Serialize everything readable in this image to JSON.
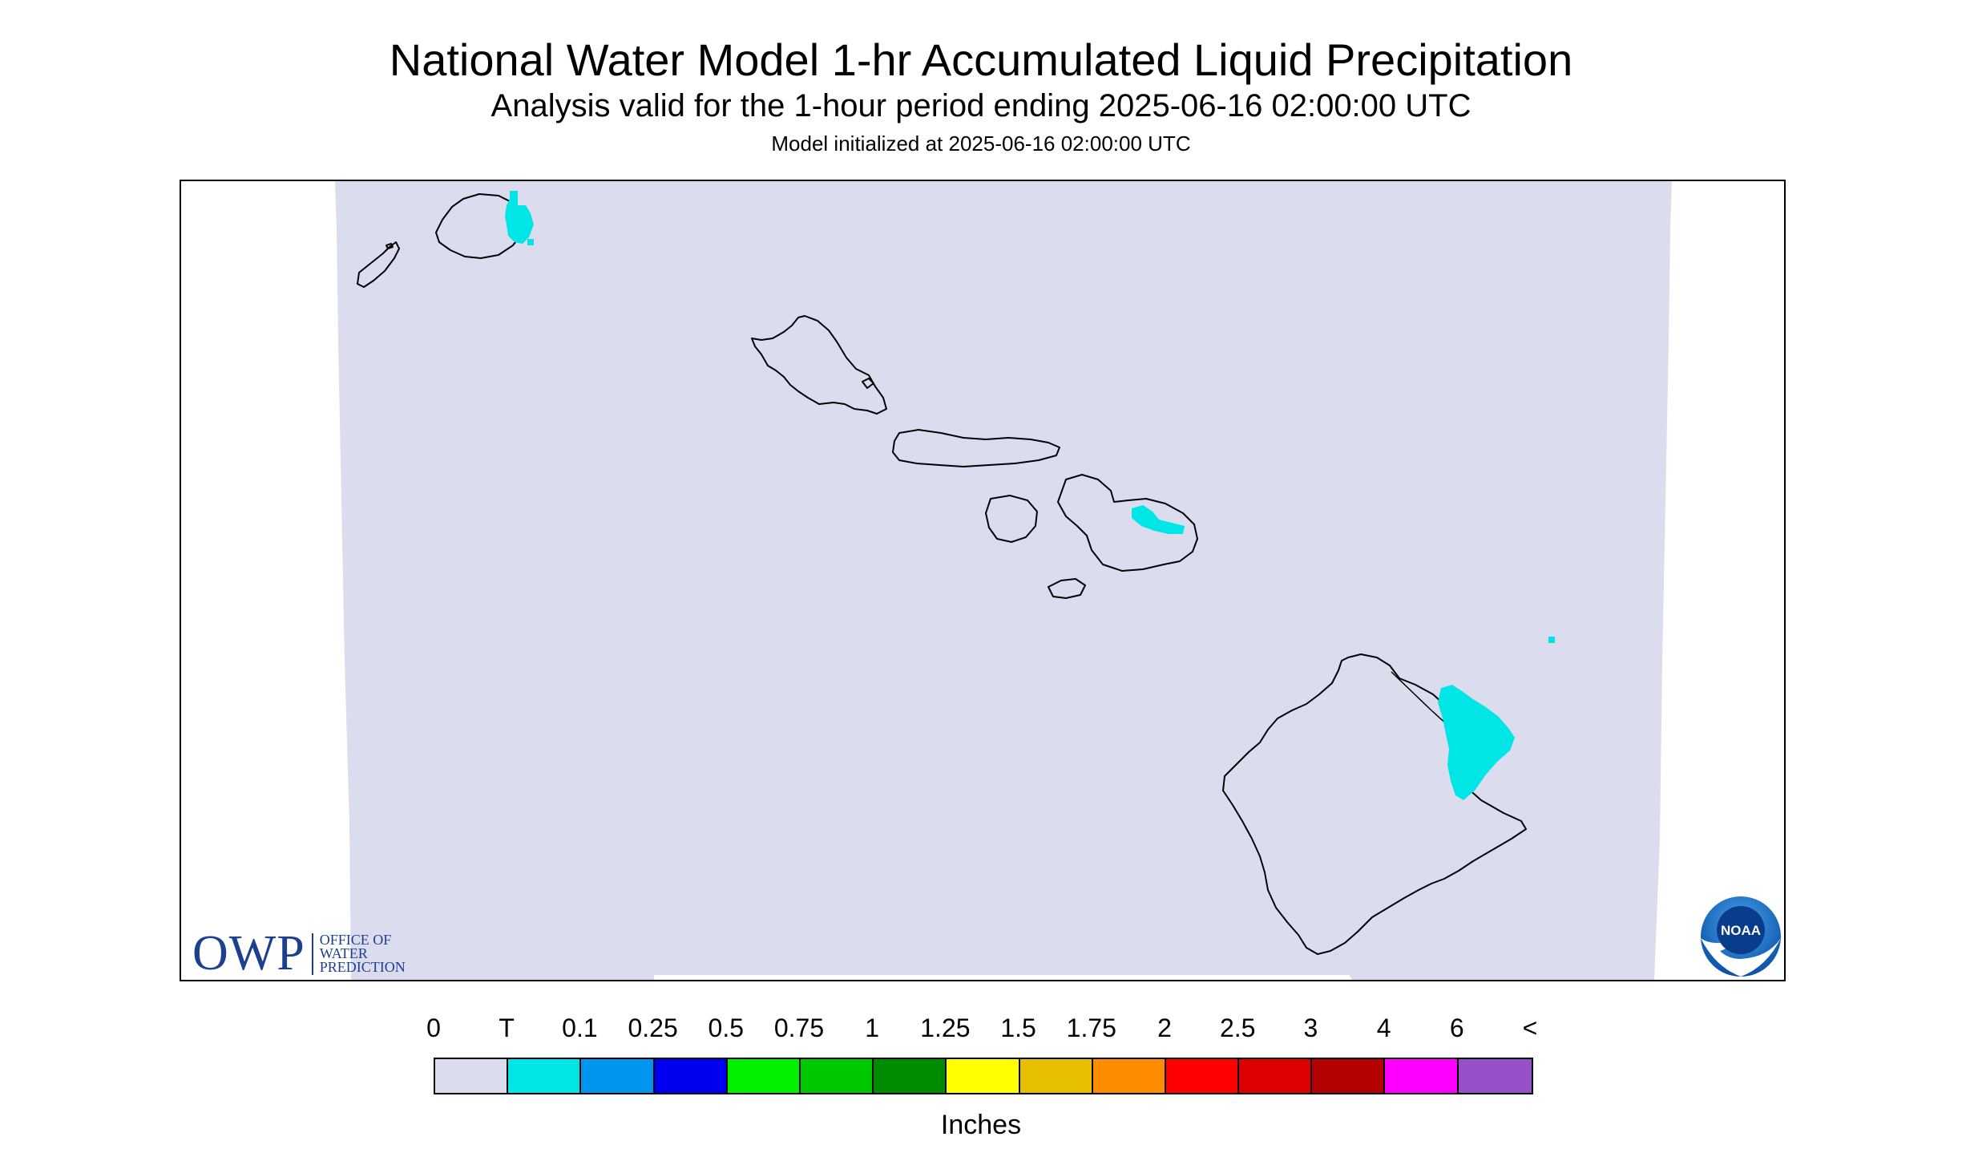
{
  "title": "National Water Model 1-hr Accumulated Liquid Precipitation",
  "subtitle": "Analysis valid for the 1-hour period ending 2025-06-16 02:00:00 UTC",
  "model_init": "Model initialized at 2025-06-16 02:00:00 UTC",
  "map": {
    "region": "Hawaiian Islands",
    "background_color": "#dcdcef",
    "precip_color": "#00e6e6",
    "islands": [
      "Niihau",
      "Kauai",
      "Oahu",
      "Molokai",
      "Lanai",
      "Maui",
      "Kahoolawe",
      "Hawaii"
    ],
    "precipitation_areas": [
      {
        "island": "Kauai",
        "category": "T"
      },
      {
        "island": "Maui",
        "category": "T"
      },
      {
        "island": "Hawaii",
        "category": "T"
      }
    ]
  },
  "owp_logo": {
    "abbr": "OWP",
    "line1": "OFFICE OF",
    "line2": "WATER",
    "line3": "PREDICTION"
  },
  "noaa_logo": {
    "text": "NOAA"
  },
  "legend": {
    "labels": [
      "0",
      "T",
      "0.1",
      "0.25",
      "0.5",
      "0.75",
      "1",
      "1.25",
      "1.5",
      "1.75",
      "2",
      "2.5",
      "3",
      "4",
      "6",
      "<"
    ],
    "colors": [
      "#dcdcef",
      "#00e6e6",
      "#0096f0",
      "#0000f0",
      "#00f000",
      "#00c800",
      "#008c00",
      "#ffff00",
      "#e6c000",
      "#ff8c00",
      "#ff0000",
      "#dc0000",
      "#b40000",
      "#ff00ff",
      "#9650c8"
    ],
    "units": "Inches"
  }
}
